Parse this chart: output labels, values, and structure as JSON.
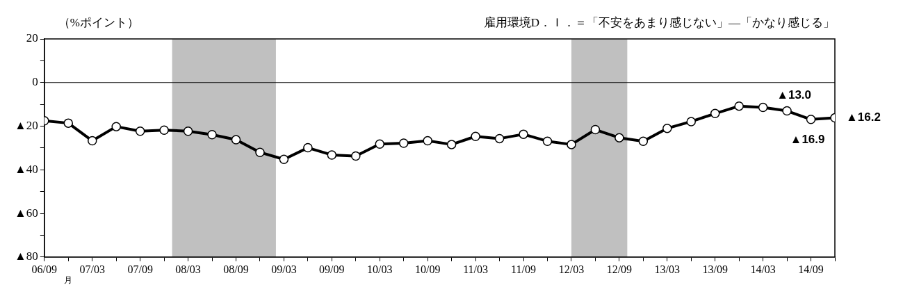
{
  "chart_data": {
    "type": "line",
    "title": "雇用環境D．Ｉ．＝「不安をあまり感じない」―「かなり感じる」",
    "ylabel": "（%ポイント）",
    "xlabel": "月",
    "x": [
      "2006-09",
      "2006-12",
      "2007-03",
      "2007-06",
      "2007-09",
      "2007-12",
      "2008-03",
      "2008-06",
      "2008-09",
      "2008-12",
      "2009-03",
      "2009-06",
      "2009-09",
      "2009-12",
      "2010-03",
      "2010-06",
      "2010-09",
      "2010-12",
      "2011-03",
      "2011-06",
      "2011-09",
      "2011-12",
      "2012-03",
      "2012-06",
      "2012-09",
      "2012-12",
      "2013-03",
      "2013-06",
      "2013-09",
      "2013-12",
      "2014-03",
      "2014-06",
      "2014-09",
      "2014-12"
    ],
    "series": [
      {
        "color": "#000000",
        "values": [
          -17.5,
          -18.6,
          -26.7,
          -20.2,
          -22.3,
          -21.8,
          -22.3,
          -23.9,
          -26.2,
          -32.0,
          -35.2,
          -29.9,
          -33.2,
          -33.7,
          -28.2,
          -27.8,
          -26.7,
          -28.4,
          -24.7,
          -25.7,
          -23.7,
          -26.9,
          -28.4,
          -21.6,
          -25.3,
          -26.9,
          -21.0,
          -17.9,
          -14.2,
          -10.8,
          -11.4,
          -13.0,
          -16.9,
          -16.2
        ]
      }
    ],
    "marker": "circle",
    "line_style": "solid",
    "legend": false,
    "grid": false,
    "xlim": [
      "2006-09",
      "2014-12"
    ],
    "xticks": [
      {
        "value": "2006-09",
        "label": "06/09"
      },
      {
        "value": "2006-12",
        "label": null
      },
      {
        "value": "2007-03",
        "label": "07/03"
      },
      {
        "value": "2007-06",
        "label": null
      },
      {
        "value": "2007-09",
        "label": "07/09"
      },
      {
        "value": "2007-12",
        "label": null
      },
      {
        "value": "2008-03",
        "label": "08/03"
      },
      {
        "value": "2008-06",
        "label": null
      },
      {
        "value": "2008-09",
        "label": "08/09"
      },
      {
        "value": "2008-12",
        "label": null
      },
      {
        "value": "2009-03",
        "label": "09/03"
      },
      {
        "value": "2009-06",
        "label": null
      },
      {
        "value": "2009-09",
        "label": "09/09"
      },
      {
        "value": "2009-12",
        "label": null
      },
      {
        "value": "2010-03",
        "label": "10/03"
      },
      {
        "value": "2010-06",
        "label": null
      },
      {
        "value": "2010-09",
        "label": "10/09"
      },
      {
        "value": "2010-12",
        "label": null
      },
      {
        "value": "2011-03",
        "label": "11/03"
      },
      {
        "value": "2011-06",
        "label": null
      },
      {
        "value": "2011-09",
        "label": "11/09"
      },
      {
        "value": "2011-12",
        "label": null
      },
      {
        "value": "2012-03",
        "label": "12/03"
      },
      {
        "value": "2012-06",
        "label": null
      },
      {
        "value": "2012-09",
        "label": "12/09"
      },
      {
        "value": "2012-12",
        "label": null
      },
      {
        "value": "2013-03",
        "label": "13/03"
      },
      {
        "value": "2013-06",
        "label": null
      },
      {
        "value": "2013-09",
        "label": "13/09"
      },
      {
        "value": "2013-12",
        "label": null
      },
      {
        "value": "2014-03",
        "label": "14/03"
      },
      {
        "value": "2014-06",
        "label": null
      },
      {
        "value": "2014-09",
        "label": "14/09"
      },
      {
        "value": "2014-12",
        "label": null
      }
    ],
    "ylim": [
      -80,
      20
    ],
    "yticks": [
      {
        "value": -80,
        "label": "▲80"
      },
      {
        "value": -70,
        "label": null
      },
      {
        "value": -60,
        "label": "▲60"
      },
      {
        "value": -50,
        "label": null
      },
      {
        "value": -40,
        "label": "▲40"
      },
      {
        "value": -30,
        "label": null
      },
      {
        "value": -20,
        "label": "▲20"
      },
      {
        "value": -10,
        "label": null
      },
      0,
      {
        "value": 10,
        "label": null
      },
      20
    ],
    "ref_lines": [
      {
        "axis": "y",
        "value": 0,
        "color": "#000000"
      }
    ],
    "bands": [
      {
        "axis": "x",
        "from": "2008-01",
        "to": "2009-02",
        "color": "#c0c0c0"
      },
      {
        "axis": "x",
        "from": "2012-03",
        "to": "2012-10",
        "color": "#c0c0c0"
      }
    ],
    "annotations": [
      {
        "text": "▲13.0",
        "x": "2014-06",
        "y": -13.0
      },
      {
        "text": "▲16.9",
        "x": "2014-09",
        "y": -16.9
      },
      {
        "text": "▲16.2",
        "x": "2014-12",
        "y": -16.2
      }
    ]
  }
}
